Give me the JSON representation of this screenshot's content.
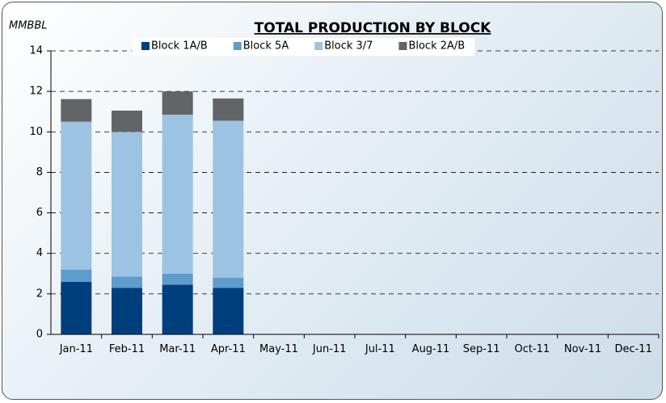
{
  "chart_data": {
    "type": "stacked_bar",
    "title": "TOTAL PRODUCTION BY BLOCK",
    "y_label": "MMBBL",
    "categories": [
      "Jan-11",
      "Feb-11",
      "Mar-11",
      "Apr-11",
      "May-11",
      "Jun-11",
      "Jul-11",
      "Aug-11",
      "Sep-11",
      "Oct-11",
      "Nov-11",
      "Dec-11"
    ],
    "series": [
      {
        "name": "Block 1A/B",
        "color": "#003f7d",
        "values": [
          2.6,
          2.3,
          2.45,
          2.3,
          null,
          null,
          null,
          null,
          null,
          null,
          null,
          null
        ]
      },
      {
        "name": "Block 5A",
        "color": "#5e9ccc",
        "values": [
          0.6,
          0.55,
          0.55,
          0.5,
          null,
          null,
          null,
          null,
          null,
          null,
          null,
          null
        ]
      },
      {
        "name": "Block 3/7",
        "color": "#9dc3e2",
        "values": [
          7.3,
          7.15,
          7.85,
          7.75,
          null,
          null,
          null,
          null,
          null,
          null,
          null,
          null
        ]
      },
      {
        "name": "Block 2A/B",
        "color": "#626468",
        "values": [
          1.12,
          1.05,
          1.15,
          1.1,
          null,
          null,
          null,
          null,
          null,
          null,
          null,
          null
        ]
      }
    ],
    "ylim": [
      0,
      14
    ],
    "yticks": [
      0,
      2,
      4,
      6,
      8,
      10,
      12,
      14
    ],
    "grid": true,
    "legend": "top"
  }
}
